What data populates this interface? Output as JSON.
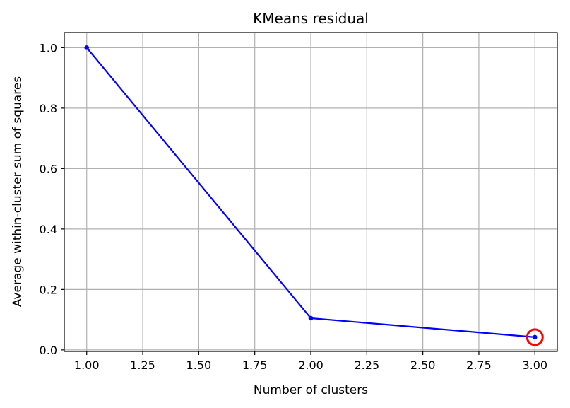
{
  "chart_data": {
    "type": "line",
    "title": "KMeans residual",
    "xlabel": "Number of clusters",
    "ylabel": "Average within-cluster sum of squares",
    "xlim": [
      0.9,
      3.1
    ],
    "ylim": [
      -0.005,
      1.05
    ],
    "x_ticks": [
      "1.00",
      "1.25",
      "1.50",
      "1.75",
      "2.00",
      "2.25",
      "2.50",
      "2.75",
      "3.00"
    ],
    "y_ticks": [
      "0.0",
      "0.2",
      "0.4",
      "0.6",
      "0.8",
      "1.0"
    ],
    "grid": true,
    "line_color": "#0000ff",
    "highlight_color": "#ff0000",
    "series": [
      {
        "x": [
          1,
          2,
          3
        ],
        "values": [
          1.0,
          0.105,
          0.042
        ]
      }
    ],
    "highlight_point": {
      "x": 3,
      "y": 0.042
    }
  }
}
